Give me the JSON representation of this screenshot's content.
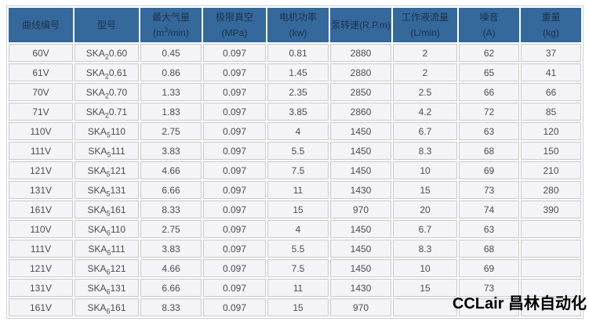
{
  "page": {
    "watermark": "CCLair 昌林自动化"
  },
  "colors": {
    "header_bg": "#35689B",
    "header_text": "#1C3350",
    "cell_bg": "#F4F4F8",
    "cell_border": "#C9C9C9",
    "table_border": "#CFCFCF",
    "cell_text": "#4D4D4D",
    "watermark_text": "#000000"
  },
  "table": {
    "columns": [
      {
        "title": "曲线编号",
        "unit": ""
      },
      {
        "title": "型号",
        "unit": ""
      },
      {
        "title": "最大气量",
        "unit_pre": "(m",
        "unit_sup": "3",
        "unit_post": "/min)"
      },
      {
        "title": "极限真空",
        "unit": "(MPa)"
      },
      {
        "title": "电机功率",
        "unit": "(kw)"
      },
      {
        "title": "泵转速(R.P.m)",
        "unit": ""
      },
      {
        "title": "工作液流量",
        "unit": "(L/min)"
      },
      {
        "title": "噪音",
        "unit": "(A)"
      },
      {
        "title": "重量",
        "unit": "(kg)"
      }
    ],
    "rows": [
      {
        "curve": "60V",
        "model_base": "SKA",
        "model_sub": "2",
        "model_num": "0.60",
        "air": "0.45",
        "vacuum": "0.097",
        "power": "0.81",
        "speed": "2880",
        "flow": "2",
        "noise": "62",
        "weight": "37"
      },
      {
        "curve": "61V",
        "model_base": "SKA",
        "model_sub": "2",
        "model_num": "0.61",
        "air": "0.86",
        "vacuum": "0.097",
        "power": "1.45",
        "speed": "2880",
        "flow": "2",
        "noise": "65",
        "weight": "41"
      },
      {
        "curve": "70V",
        "model_base": "SKA",
        "model_sub": "2",
        "model_num": "0.70",
        "air": "1.33",
        "vacuum": "0.097",
        "power": "2.35",
        "speed": "2850",
        "flow": "2.5",
        "noise": "66",
        "weight": "66"
      },
      {
        "curve": "71V",
        "model_base": "SKA",
        "model_sub": "2",
        "model_num": "0.71",
        "air": "1.83",
        "vacuum": "0.097",
        "power": "3.85",
        "speed": "2860",
        "flow": "4.2",
        "noise": "72",
        "weight": "85"
      },
      {
        "curve": "110V",
        "model_base": "SKA",
        "model_sub": "5",
        "model_num": "110",
        "air": "2.75",
        "vacuum": "0.097",
        "power": "4",
        "speed": "1450",
        "flow": "6.7",
        "noise": "63",
        "weight": "120"
      },
      {
        "curve": "111V",
        "model_base": "SKA",
        "model_sub": "5",
        "model_num": "111",
        "air": "3.83",
        "vacuum": "0.097",
        "power": "5.5",
        "speed": "1450",
        "flow": "8.3",
        "noise": "68",
        "weight": "150"
      },
      {
        "curve": "121V",
        "model_base": "SKA",
        "model_sub": "5",
        "model_num": "121",
        "air": "4.66",
        "vacuum": "0.097",
        "power": "7.5",
        "speed": "1450",
        "flow": "10",
        "noise": "69",
        "weight": "210"
      },
      {
        "curve": "131V",
        "model_base": "SKA",
        "model_sub": "5",
        "model_num": "131",
        "air": "6.66",
        "vacuum": "0.097",
        "power": "11",
        "speed": "1430",
        "flow": "15",
        "noise": "73",
        "weight": "280"
      },
      {
        "curve": "161V",
        "model_base": "SKA",
        "model_sub": "5",
        "model_num": "161",
        "air": "8.33",
        "vacuum": "0.097",
        "power": "15",
        "speed": "970",
        "flow": "20",
        "noise": "74",
        "weight": "390"
      },
      {
        "curve": "110V",
        "model_base": "SKA",
        "model_sub": "6",
        "model_num": "110",
        "air": "2.75",
        "vacuum": "0.097",
        "power": "4",
        "speed": "1450",
        "flow": "6.7",
        "noise": "63",
        "weight": ""
      },
      {
        "curve": "111V",
        "model_base": "SKA",
        "model_sub": "6",
        "model_num": "111",
        "air": "3.83",
        "vacuum": "0.097",
        "power": "5.5",
        "speed": "1450",
        "flow": "8.3",
        "noise": "68",
        "weight": ""
      },
      {
        "curve": "121V",
        "model_base": "SKA",
        "model_sub": "6",
        "model_num": "121",
        "air": "4.66",
        "vacuum": "0.097",
        "power": "7.5",
        "speed": "1450",
        "flow": "10",
        "noise": "69",
        "weight": ""
      },
      {
        "curve": "131V",
        "model_base": "SKA",
        "model_sub": "6",
        "model_num": "131",
        "air": "6.66",
        "vacuum": "0.097",
        "power": "11",
        "speed": "1430",
        "flow": "15",
        "noise": "73",
        "weight": ""
      },
      {
        "curve": "161V",
        "model_base": "SKA",
        "model_sub": "6",
        "model_num": "161",
        "air": "8.33",
        "vacuum": "0.097",
        "power": "15",
        "speed": "970",
        "flow": "",
        "noise": "",
        "weight": ""
      }
    ]
  }
}
